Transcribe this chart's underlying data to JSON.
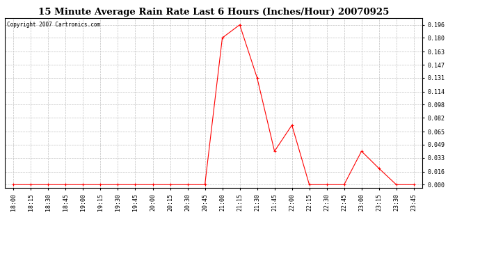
{
  "title": "15 Minute Average Rain Rate Last 6 Hours (Inches/Hour) 20070925",
  "copyright": "Copyright 2007 Cartronics.com",
  "x_labels": [
    "18:00",
    "18:15",
    "18:30",
    "18:45",
    "19:00",
    "19:15",
    "19:30",
    "19:45",
    "20:00",
    "20:15",
    "20:30",
    "20:45",
    "21:00",
    "21:15",
    "21:30",
    "21:45",
    "22:00",
    "22:15",
    "22:30",
    "22:45",
    "23:00",
    "23:15",
    "23:30",
    "23:45"
  ],
  "y_values": [
    0.0,
    0.0,
    0.0,
    0.0,
    0.0,
    0.0,
    0.0,
    0.0,
    0.0,
    0.0,
    0.0,
    0.0,
    0.18,
    0.196,
    0.131,
    0.041,
    0.073,
    0.0,
    0.0,
    0.0,
    0.041,
    0.02,
    0.0,
    0.0
  ],
  "y_ticks": [
    0.0,
    0.016,
    0.033,
    0.049,
    0.065,
    0.082,
    0.098,
    0.114,
    0.131,
    0.147,
    0.163,
    0.18,
    0.196
  ],
  "y_tick_labels": [
    "0.000",
    "0.016",
    "0.033",
    "0.049",
    "0.065",
    "0.082",
    "0.098",
    "0.114",
    "0.131",
    "0.147",
    "0.163",
    "0.180",
    "0.196"
  ],
  "line_color": "#ff0000",
  "marker": "+",
  "bg_color": "#ffffff",
  "plot_bg_color": "#ffffff",
  "grid_color": "#c0c0c0",
  "title_fontsize": 9.5,
  "copyright_fontsize": 5.5,
  "tick_fontsize": 6.0
}
